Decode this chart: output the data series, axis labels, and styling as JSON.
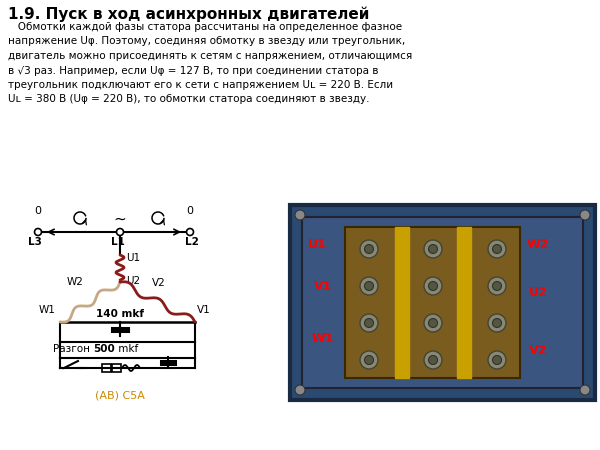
{
  "title": "1.9. Пуск в ход асинхронных двигателей",
  "line1": "   Обмотки каждой фазы статора рассчитаны на определенное фазное",
  "line2": "напряжение Uφ. Поэтому, соединяя обмотку в звезду или треугольник,",
  "line3": "двигатель можно присоединять к сетям с напряжением, отличающимся",
  "line4": "в √3 раз. Например, если Uφ = 127 В, то при соединении статора в",
  "line5": "треугольник подключают его к сети с напряжением Uʟ = 220 В. Если",
  "line6": "Uʟ = 380 В (Uφ = 220 В), то обмотки статора соединяют в звезду.",
  "bg_color": "#ffffff",
  "text_color": "#000000",
  "title_color": "#000000",
  "coil_red": "#8b1a1a",
  "coil_tan": "#c8a882",
  "label_ab": "#cc8800",
  "photo_blue": "#3a5f8a",
  "board_brown": "#7a5c1e",
  "board_yellow": "#c8a000",
  "bolt_gray": "#b0b0b0"
}
